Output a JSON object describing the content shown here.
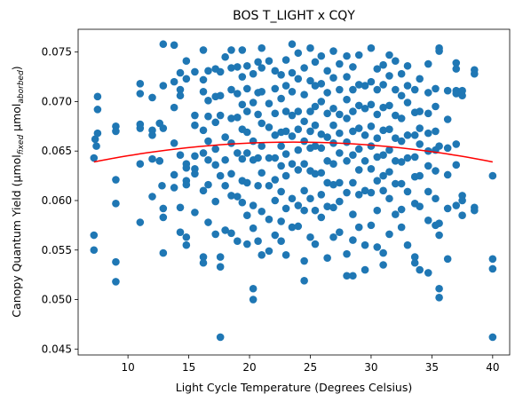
{
  "chart_data": {
    "type": "scatter",
    "title": "BOS T_LIGHT x CQY",
    "xlabel": "Light Cycle Temperature (Degrees Celsius)",
    "ylabel_parts": {
      "prefix": "Canopy Quantum Yield (μmol",
      "sub1": "fixed",
      "middle": " μmol",
      "sub2": "aborbed",
      "suffix": ")"
    },
    "xlim": [
      5.9,
      41.4
    ],
    "ylim": [
      0.0444,
      0.0773
    ],
    "xticks": [
      10,
      15,
      20,
      25,
      30,
      35,
      40
    ],
    "yticks": [
      0.045,
      0.05,
      0.055,
      0.06,
      0.065,
      0.07,
      0.075
    ],
    "ytick_labels": [
      "0.045",
      "0.050",
      "0.055",
      "0.060",
      "0.065",
      "0.070",
      "0.075"
    ],
    "grid": false,
    "point_color": "#1f77b4",
    "fit_color": "#ff0000",
    "fit": {
      "type": "quadratic",
      "x_range": [
        7.2,
        40.0
      ],
      "vertex_x": 23.6,
      "vertex_y": 0.0659,
      "end_y": 0.0639
    },
    "points": [
      [
        7.2,
        0.0643
      ],
      [
        7.2,
        0.0565
      ],
      [
        7.2,
        0.055
      ],
      [
        7.3,
        0.0662
      ],
      [
        7.5,
        0.0705
      ],
      [
        7.5,
        0.0692
      ],
      [
        7.5,
        0.0668
      ],
      [
        7.4,
        0.0655
      ],
      [
        9.0,
        0.0675
      ],
      [
        9.0,
        0.067
      ],
      [
        9.0,
        0.0621
      ],
      [
        9.0,
        0.0597
      ],
      [
        9.0,
        0.0538
      ],
      [
        9.0,
        0.0518
      ],
      [
        11.0,
        0.0718
      ],
      [
        11.0,
        0.0708
      ],
      [
        11.0,
        0.0677
      ],
      [
        11.0,
        0.0673
      ],
      [
        11.0,
        0.0637
      ],
      [
        11.0,
        0.0578
      ],
      [
        12.0,
        0.0704
      ],
      [
        12.0,
        0.0671
      ],
      [
        12.0,
        0.0666
      ],
      [
        12.0,
        0.0642
      ],
      [
        12.0,
        0.0604
      ],
      [
        12.6,
        0.0678
      ],
      [
        12.6,
        0.064
      ],
      [
        12.6,
        0.064
      ],
      [
        12.8,
        0.0615
      ],
      [
        12.9,
        0.0758
      ],
      [
        12.9,
        0.0716
      ],
      [
        12.9,
        0.0673
      ],
      [
        12.9,
        0.0592
      ],
      [
        12.9,
        0.0583
      ],
      [
        12.9,
        0.0547
      ],
      [
        13.8,
        0.0757
      ],
      [
        13.8,
        0.072
      ],
      [
        13.8,
        0.0694
      ],
      [
        13.8,
        0.0658
      ],
      [
        13.8,
        0.0626
      ],
      [
        13.8,
        0.0613
      ],
      [
        14.3,
        0.0729
      ],
      [
        14.3,
        0.0712
      ],
      [
        14.3,
        0.0706
      ],
      [
        14.3,
        0.0646
      ],
      [
        14.3,
        0.0593
      ],
      [
        14.3,
        0.0568
      ],
      [
        14.8,
        0.0741
      ],
      [
        14.8,
        0.0723
      ],
      [
        14.8,
        0.0637
      ],
      [
        14.8,
        0.0633
      ],
      [
        14.8,
        0.062
      ],
      [
        14.8,
        0.0616
      ],
      [
        14.8,
        0.0563
      ],
      [
        14.8,
        0.0555
      ],
      [
        15.5,
        0.073
      ],
      [
        15.5,
        0.0686
      ],
      [
        15.5,
        0.0676
      ],
      [
        15.5,
        0.0645
      ],
      [
        15.5,
        0.0632
      ],
      [
        15.5,
        0.0627
      ],
      [
        15.5,
        0.0588
      ],
      [
        16.2,
        0.0752
      ],
      [
        16.2,
        0.0722
      ],
      [
        16.2,
        0.071
      ],
      [
        16.2,
        0.0671
      ],
      [
        16.2,
        0.0648
      ],
      [
        16.2,
        0.061
      ],
      [
        16.2,
        0.0543
      ],
      [
        16.2,
        0.0537
      ],
      [
        16.6,
        0.0731
      ],
      [
        16.6,
        0.0701
      ],
      [
        16.6,
        0.0685
      ],
      [
        16.6,
        0.066
      ],
      [
        16.6,
        0.0641
      ],
      [
        16.6,
        0.0616
      ],
      [
        16.6,
        0.0578
      ],
      [
        17.2,
        0.0733
      ],
      [
        17.2,
        0.0705
      ],
      [
        17.2,
        0.0679
      ],
      [
        17.2,
        0.0652
      ],
      [
        17.2,
        0.0636
      ],
      [
        17.2,
        0.0599
      ],
      [
        17.2,
        0.0566
      ],
      [
        17.6,
        0.073
      ],
      [
        17.6,
        0.0706
      ],
      [
        17.6,
        0.0686
      ],
      [
        17.6,
        0.0625
      ],
      [
        17.6,
        0.0543
      ],
      [
        17.6,
        0.0533
      ],
      [
        17.6,
        0.0462
      ],
      [
        18.0,
        0.0745
      ],
      [
        18.0,
        0.0664
      ],
      [
        18.0,
        0.0641
      ],
      [
        18.0,
        0.0615
      ],
      [
        18.0,
        0.057
      ],
      [
        18.5,
        0.0752
      ],
      [
        18.5,
        0.0734
      ],
      [
        18.5,
        0.0712
      ],
      [
        18.5,
        0.0683
      ],
      [
        18.5,
        0.0658
      ],
      [
        18.5,
        0.0627
      ],
      [
        18.5,
        0.0605
      ],
      [
        18.5,
        0.0567
      ],
      [
        19.0,
        0.0735
      ],
      [
        19.0,
        0.0708
      ],
      [
        19.0,
        0.0684
      ],
      [
        19.0,
        0.0648
      ],
      [
        19.0,
        0.0604
      ],
      [
        19.0,
        0.0559
      ],
      [
        19.4,
        0.0752
      ],
      [
        19.4,
        0.0725
      ],
      [
        19.4,
        0.0697
      ],
      [
        19.4,
        0.0672
      ],
      [
        19.4,
        0.0642
      ],
      [
        19.4,
        0.062
      ],
      [
        19.4,
        0.0598
      ],
      [
        19.8,
        0.0736
      ],
      [
        19.8,
        0.0713
      ],
      [
        19.8,
        0.069
      ],
      [
        19.8,
        0.0669
      ],
      [
        19.8,
        0.0648
      ],
      [
        19.8,
        0.0618
      ],
      [
        19.8,
        0.0585
      ],
      [
        19.8,
        0.0556
      ],
      [
        20.3,
        0.0728
      ],
      [
        20.3,
        0.0699
      ],
      [
        20.3,
        0.066
      ],
      [
        20.3,
        0.0641
      ],
      [
        20.3,
        0.0595
      ],
      [
        20.3,
        0.0572
      ],
      [
        20.3,
        0.0511
      ],
      [
        20.3,
        0.05
      ],
      [
        20.7,
        0.074
      ],
      [
        20.7,
        0.0709
      ],
      [
        20.7,
        0.0687
      ],
      [
        20.7,
        0.0643
      ],
      [
        20.7,
        0.0615
      ],
      [
        20.7,
        0.0559
      ],
      [
        21.0,
        0.0754
      ],
      [
        21.0,
        0.0734
      ],
      [
        21.0,
        0.071
      ],
      [
        21.0,
        0.0678
      ],
      [
        21.0,
        0.0655
      ],
      [
        21.0,
        0.0628
      ],
      [
        21.0,
        0.0589
      ],
      [
        21.0,
        0.0545
      ],
      [
        21.6,
        0.0741
      ],
      [
        21.6,
        0.0698
      ],
      [
        21.6,
        0.0674
      ],
      [
        21.6,
        0.0643
      ],
      [
        21.6,
        0.0615
      ],
      [
        21.6,
        0.0581
      ],
      [
        21.6,
        0.0549
      ],
      [
        22.1,
        0.0731
      ],
      [
        22.1,
        0.0713
      ],
      [
        22.1,
        0.0688
      ],
      [
        22.1,
        0.0666
      ],
      [
        22.1,
        0.0643
      ],
      [
        22.1,
        0.0621
      ],
      [
        22.1,
        0.06
      ],
      [
        22.1,
        0.0565
      ],
      [
        22.6,
        0.0727
      ],
      [
        22.6,
        0.0703
      ],
      [
        22.6,
        0.0669
      ],
      [
        22.6,
        0.0655
      ],
      [
        22.6,
        0.0635
      ],
      [
        22.6,
        0.0609
      ],
      [
        22.6,
        0.0579
      ],
      [
        22.6,
        0.0559
      ],
      [
        23.0,
        0.0742
      ],
      [
        23.0,
        0.0716
      ],
      [
        23.0,
        0.069
      ],
      [
        23.0,
        0.067
      ],
      [
        23.0,
        0.0647
      ],
      [
        23.0,
        0.0625
      ],
      [
        23.0,
        0.0592
      ],
      [
        23.0,
        0.0545
      ],
      [
        23.5,
        0.0758
      ],
      [
        23.5,
        0.0729
      ],
      [
        23.5,
        0.071
      ],
      [
        23.5,
        0.0686
      ],
      [
        23.5,
        0.0665
      ],
      [
        23.5,
        0.0637
      ],
      [
        23.5,
        0.0602
      ],
      [
        23.5,
        0.0573
      ],
      [
        24.0,
        0.0749
      ],
      [
        24.0,
        0.0723
      ],
      [
        24.0,
        0.069
      ],
      [
        24.0,
        0.0672
      ],
      [
        24.0,
        0.0651
      ],
      [
        24.0,
        0.0631
      ],
      [
        24.0,
        0.0595
      ],
      [
        24.0,
        0.0574
      ],
      [
        24.5,
        0.0734
      ],
      [
        24.5,
        0.0707
      ],
      [
        24.5,
        0.068
      ],
      [
        24.5,
        0.066
      ],
      [
        24.5,
        0.0637
      ],
      [
        24.5,
        0.061
      ],
      [
        24.5,
        0.059
      ],
      [
        24.5,
        0.0539
      ],
      [
        24.5,
        0.0519
      ],
      [
        25.0,
        0.0754
      ],
      [
        25.0,
        0.0721
      ],
      [
        25.0,
        0.069
      ],
      [
        25.0,
        0.067
      ],
      [
        25.0,
        0.0653
      ],
      [
        25.0,
        0.063
      ],
      [
        25.0,
        0.0602
      ],
      [
        25.0,
        0.0563
      ],
      [
        25.4,
        0.074
      ],
      [
        25.4,
        0.0716
      ],
      [
        25.4,
        0.0695
      ],
      [
        25.4,
        0.0676
      ],
      [
        25.4,
        0.0655
      ],
      [
        25.4,
        0.0627
      ],
      [
        25.4,
        0.059
      ],
      [
        25.4,
        0.0556
      ],
      [
        25.9,
        0.0746
      ],
      [
        25.9,
        0.0718
      ],
      [
        25.9,
        0.07
      ],
      [
        25.9,
        0.0667
      ],
      [
        25.9,
        0.0653
      ],
      [
        25.9,
        0.0628
      ],
      [
        25.9,
        0.0606
      ],
      [
        25.9,
        0.0583
      ],
      [
        26.4,
        0.0731
      ],
      [
        26.4,
        0.0709
      ],
      [
        26.4,
        0.0688
      ],
      [
        26.4,
        0.0664
      ],
      [
        26.4,
        0.064
      ],
      [
        26.4,
        0.0618
      ],
      [
        26.4,
        0.0594
      ],
      [
        26.4,
        0.0542
      ],
      [
        26.9,
        0.0751
      ],
      [
        26.9,
        0.0724
      ],
      [
        26.9,
        0.0693
      ],
      [
        26.9,
        0.0676
      ],
      [
        26.9,
        0.0658
      ],
      [
        26.9,
        0.0637
      ],
      [
        26.9,
        0.0616
      ],
      [
        26.9,
        0.0593
      ],
      [
        26.9,
        0.0563
      ],
      [
        27.4,
        0.0738
      ],
      [
        27.4,
        0.0712
      ],
      [
        27.4,
        0.0687
      ],
      [
        27.4,
        0.0668
      ],
      [
        27.4,
        0.0648
      ],
      [
        27.4,
        0.0618
      ],
      [
        27.4,
        0.0599
      ],
      [
        27.4,
        0.0568
      ],
      [
        28.0,
        0.0746
      ],
      [
        28.0,
        0.0725
      ],
      [
        28.0,
        0.0702
      ],
      [
        28.0,
        0.0683
      ],
      [
        28.0,
        0.0659
      ],
      [
        28.0,
        0.064
      ],
      [
        28.0,
        0.0608
      ],
      [
        28.0,
        0.0546
      ],
      [
        28.0,
        0.0524
      ],
      [
        28.5,
        0.0735
      ],
      [
        28.5,
        0.0712
      ],
      [
        28.5,
        0.069
      ],
      [
        28.5,
        0.067
      ],
      [
        28.5,
        0.0646
      ],
      [
        28.5,
        0.0618
      ],
      [
        28.5,
        0.0586
      ],
      [
        28.5,
        0.056
      ],
      [
        28.5,
        0.0524
      ],
      [
        29.0,
        0.0747
      ],
      [
        29.0,
        0.0717
      ],
      [
        29.0,
        0.0696
      ],
      [
        29.0,
        0.0673
      ],
      [
        29.0,
        0.0652
      ],
      [
        29.0,
        0.0631
      ],
      [
        29.0,
        0.0606
      ],
      [
        29.0,
        0.0573
      ],
      [
        29.5,
        0.0716
      ],
      [
        29.5,
        0.0693
      ],
      [
        29.5,
        0.0666
      ],
      [
        29.5,
        0.064
      ],
      [
        29.5,
        0.061
      ],
      [
        29.5,
        0.0555
      ],
      [
        29.5,
        0.053
      ],
      [
        30.0,
        0.0754
      ],
      [
        30.0,
        0.072
      ],
      [
        30.0,
        0.0697
      ],
      [
        30.0,
        0.0675
      ],
      [
        30.0,
        0.0655
      ],
      [
        30.0,
        0.0632
      ],
      [
        30.0,
        0.0608
      ],
      [
        30.0,
        0.0575
      ],
      [
        30.5,
        0.0733
      ],
      [
        30.5,
        0.0712
      ],
      [
        30.5,
        0.0687
      ],
      [
        30.5,
        0.0663
      ],
      [
        30.5,
        0.0644
      ],
      [
        30.5,
        0.062
      ],
      [
        30.5,
        0.059
      ],
      [
        30.5,
        0.0553
      ],
      [
        31.0,
        0.0737
      ],
      [
        31.0,
        0.0717
      ],
      [
        31.0,
        0.0694
      ],
      [
        31.0,
        0.0671
      ],
      [
        31.0,
        0.0646
      ],
      [
        31.0,
        0.0625
      ],
      [
        31.0,
        0.061
      ],
      [
        31.0,
        0.0547
      ],
      [
        31.0,
        0.0535
      ],
      [
        31.5,
        0.0747
      ],
      [
        31.5,
        0.0726
      ],
      [
        31.5,
        0.0696
      ],
      [
        31.5,
        0.0672
      ],
      [
        31.5,
        0.0651
      ],
      [
        31.5,
        0.0629
      ],
      [
        31.5,
        0.0602
      ],
      [
        31.5,
        0.0566
      ],
      [
        32.0,
        0.0741
      ],
      [
        32.0,
        0.0712
      ],
      [
        32.0,
        0.0686
      ],
      [
        32.0,
        0.0663
      ],
      [
        32.0,
        0.064
      ],
      [
        32.0,
        0.0617
      ],
      [
        32.0,
        0.0586
      ],
      [
        32.5,
        0.0728
      ],
      [
        32.5,
        0.0706
      ],
      [
        32.5,
        0.0683
      ],
      [
        32.5,
        0.066
      ],
      [
        32.5,
        0.0639
      ],
      [
        32.5,
        0.0617
      ],
      [
        32.5,
        0.0591
      ],
      [
        32.5,
        0.0573
      ],
      [
        33.0,
        0.0736
      ],
      [
        33.0,
        0.0716
      ],
      [
        33.0,
        0.0699
      ],
      [
        33.0,
        0.0666
      ],
      [
        33.0,
        0.0643
      ],
      [
        33.0,
        0.0609
      ],
      [
        33.0,
        0.0555
      ],
      [
        33.6,
        0.0712
      ],
      [
        33.6,
        0.0689
      ],
      [
        33.6,
        0.0666
      ],
      [
        33.6,
        0.0644
      ],
      [
        33.6,
        0.0624
      ],
      [
        33.6,
        0.0597
      ],
      [
        33.6,
        0.0543
      ],
      [
        33.6,
        0.0537
      ],
      [
        34.0,
        0.0723
      ],
      [
        34.0,
        0.069
      ],
      [
        34.0,
        0.0673
      ],
      [
        34.0,
        0.0657
      ],
      [
        34.0,
        0.0625
      ],
      [
        34.0,
        0.0594
      ],
      [
        34.0,
        0.053
      ],
      [
        34.7,
        0.0738
      ],
      [
        34.7,
        0.0709
      ],
      [
        34.7,
        0.0688
      ],
      [
        34.7,
        0.0668
      ],
      [
        34.7,
        0.065
      ],
      [
        34.7,
        0.0635
      ],
      [
        34.7,
        0.0609
      ],
      [
        34.7,
        0.058
      ],
      [
        34.7,
        0.0527
      ],
      [
        35.3,
        0.0713
      ],
      [
        35.3,
        0.0695
      ],
      [
        35.3,
        0.067
      ],
      [
        35.3,
        0.0651
      ],
      [
        35.3,
        0.063
      ],
      [
        35.3,
        0.0602
      ],
      [
        35.3,
        0.0575
      ],
      [
        35.6,
        0.0754
      ],
      [
        35.6,
        0.0751
      ],
      [
        35.6,
        0.0655
      ],
      [
        35.6,
        0.0577
      ],
      [
        35.6,
        0.0565
      ],
      [
        35.6,
        0.0511
      ],
      [
        35.6,
        0.0502
      ],
      [
        36.3,
        0.0711
      ],
      [
        36.3,
        0.0682
      ],
      [
        36.3,
        0.0653
      ],
      [
        36.3,
        0.0626
      ],
      [
        36.3,
        0.0592
      ],
      [
        36.3,
        0.0541
      ],
      [
        37.0,
        0.0739
      ],
      [
        37.0,
        0.0733
      ],
      [
        37.0,
        0.0711
      ],
      [
        37.0,
        0.0708
      ],
      [
        37.0,
        0.0657
      ],
      [
        37.0,
        0.0636
      ],
      [
        37.0,
        0.0595
      ],
      [
        37.5,
        0.0711
      ],
      [
        37.5,
        0.0706
      ],
      [
        37.5,
        0.0605
      ],
      [
        37.5,
        0.06
      ],
      [
        37.5,
        0.0585
      ],
      [
        38.5,
        0.0732
      ],
      [
        38.5,
        0.0728
      ],
      [
        38.5,
        0.0593
      ],
      [
        38.5,
        0.059
      ],
      [
        40.0,
        0.0625
      ],
      [
        40.0,
        0.0541
      ],
      [
        40.0,
        0.0531
      ],
      [
        40.0,
        0.0462
      ]
    ]
  }
}
